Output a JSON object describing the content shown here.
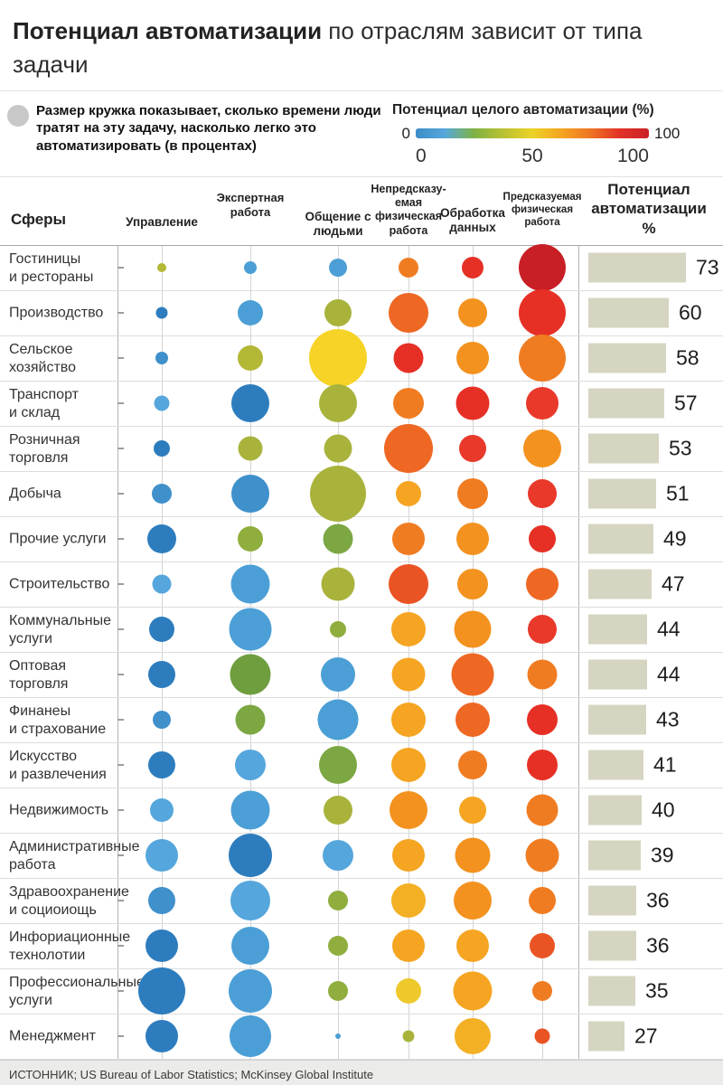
{
  "title": {
    "bold": "Потенциал автоматизации",
    "rest": " по отраслям зависит от типа задачи"
  },
  "size_legend": {
    "icon": "circle-icon",
    "icon_color": "#c8c8c8",
    "text": "Размер кружка показывает, сколько времени люди тратят на эту задачу, насколько легко это автоматизировать (в процентах)"
  },
  "color_legend": {
    "title": "Потенциал целого автоматизации (%)",
    "bar_min_label": "0",
    "bar_max_label": "100",
    "axis_ticks": [
      "0",
      "50",
      "100"
    ],
    "gradient": [
      "#3c8dc8",
      "#55a7db",
      "#7fb243",
      "#b9c133",
      "#ecd326",
      "#f4a421",
      "#ef7423",
      "#e23127",
      "#c92127"
    ]
  },
  "chart_data": {
    "type": "bubble-matrix",
    "row_header": "Сферы",
    "columns": [
      "Управление",
      "Экспертная\nработа",
      "Общение с\nлюдьми",
      "Непредсказу-\nемая\nфизическая\nработа",
      "Обработка\nданных",
      "Предсказуемая\nфизическая\nработа"
    ],
    "value_header": "Потенциал\nавтоматизации %",
    "value_range": [
      0,
      100
    ],
    "bar_color": "#d6d5c2",
    "rows": [
      {
        "label": "Гостиницы\nи рестораны",
        "value": 73,
        "bubbles": [
          {
            "d": 10,
            "c": "#b3b837"
          },
          {
            "d": 14,
            "c": "#4b9fd6"
          },
          {
            "d": 20,
            "c": "#4b9fd6"
          },
          {
            "d": 22,
            "c": "#f07c22"
          },
          {
            "d": 24,
            "c": "#e63026"
          },
          {
            "d": 52,
            "c": "#c81f26"
          }
        ]
      },
      {
        "label": "Производство",
        "value": 60,
        "bubbles": [
          {
            "d": 13,
            "c": "#2d7dbe"
          },
          {
            "d": 28,
            "c": "#4b9fd6"
          },
          {
            "d": 30,
            "c": "#a9b33c"
          },
          {
            "d": 44,
            "c": "#ee6823"
          },
          {
            "d": 32,
            "c": "#f3921f"
          },
          {
            "d": 52,
            "c": "#e63026"
          }
        ]
      },
      {
        "label": "Сельское\nхозяйство",
        "value": 58,
        "bubbles": [
          {
            "d": 14,
            "c": "#3f90cb"
          },
          {
            "d": 28,
            "c": "#b3b837"
          },
          {
            "d": 64,
            "c": "#f6d326"
          },
          {
            "d": 33,
            "c": "#e63026"
          },
          {
            "d": 36,
            "c": "#f3921f"
          },
          {
            "d": 52,
            "c": "#f07c22"
          }
        ]
      },
      {
        "label": "Транспорт\nи склад",
        "value": 57,
        "bubbles": [
          {
            "d": 17,
            "c": "#55a6dc"
          },
          {
            "d": 42,
            "c": "#2d7dbe"
          },
          {
            "d": 42,
            "c": "#a9b33c"
          },
          {
            "d": 34,
            "c": "#f07c22"
          },
          {
            "d": 37,
            "c": "#e63026"
          },
          {
            "d": 36,
            "c": "#e8392b"
          }
        ]
      },
      {
        "label": "Розничная\nторговля",
        "value": 53,
        "bubbles": [
          {
            "d": 18,
            "c": "#2d7dbe"
          },
          {
            "d": 27,
            "c": "#a9b33c"
          },
          {
            "d": 31,
            "c": "#a9b33c"
          },
          {
            "d": 54,
            "c": "#ee6823"
          },
          {
            "d": 30,
            "c": "#e8392b"
          },
          {
            "d": 42,
            "c": "#f3921f"
          }
        ]
      },
      {
        "label": "Добыча",
        "value": 51,
        "bubbles": [
          {
            "d": 22,
            "c": "#3f90cb"
          },
          {
            "d": 42,
            "c": "#3f90cb"
          },
          {
            "d": 62,
            "c": "#a9b33c"
          },
          {
            "d": 28,
            "c": "#f5a522"
          },
          {
            "d": 34,
            "c": "#f07c22"
          },
          {
            "d": 32,
            "c": "#e8392b"
          }
        ]
      },
      {
        "label": "Прочие услуги",
        "value": 49,
        "bubbles": [
          {
            "d": 32,
            "c": "#2d7dbe"
          },
          {
            "d": 28,
            "c": "#8fae3d"
          },
          {
            "d": 33,
            "c": "#7ca743"
          },
          {
            "d": 36,
            "c": "#f07c22"
          },
          {
            "d": 36,
            "c": "#f3921f"
          },
          {
            "d": 30,
            "c": "#e63026"
          }
        ]
      },
      {
        "label": "Строительство",
        "value": 47,
        "bubbles": [
          {
            "d": 21,
            "c": "#55a6dc"
          },
          {
            "d": 43,
            "c": "#4b9fd6"
          },
          {
            "d": 37,
            "c": "#a9b33c"
          },
          {
            "d": 44,
            "c": "#ea5424"
          },
          {
            "d": 34,
            "c": "#f3921f"
          },
          {
            "d": 36,
            "c": "#ee6823"
          }
        ]
      },
      {
        "label": "Коммунальные\nуслуги",
        "value": 44,
        "bubbles": [
          {
            "d": 28,
            "c": "#2d7dbe"
          },
          {
            "d": 47,
            "c": "#4b9fd6"
          },
          {
            "d": 18,
            "c": "#8fae3d"
          },
          {
            "d": 38,
            "c": "#f5a522"
          },
          {
            "d": 41,
            "c": "#f3921f"
          },
          {
            "d": 32,
            "c": "#e8392b"
          }
        ]
      },
      {
        "label": "Оптовая\nторговля",
        "value": 44,
        "bubbles": [
          {
            "d": 30,
            "c": "#2d7dbe"
          },
          {
            "d": 45,
            "c": "#6f9e3f"
          },
          {
            "d": 38,
            "c": "#4b9fd6"
          },
          {
            "d": 37,
            "c": "#f5a522"
          },
          {
            "d": 47,
            "c": "#ee6823"
          },
          {
            "d": 33,
            "c": "#f07c22"
          }
        ]
      },
      {
        "label": "Финанеы\nи страхование",
        "value": 43,
        "bubbles": [
          {
            "d": 20,
            "c": "#3f90cb"
          },
          {
            "d": 33,
            "c": "#7ca743"
          },
          {
            "d": 45,
            "c": "#4b9fd6"
          },
          {
            "d": 38,
            "c": "#f5a522"
          },
          {
            "d": 38,
            "c": "#ee6823"
          },
          {
            "d": 34,
            "c": "#e63026"
          }
        ]
      },
      {
        "label": "Искусство\nи развлечения",
        "value": 41,
        "bubbles": [
          {
            "d": 30,
            "c": "#2d7dbe"
          },
          {
            "d": 34,
            "c": "#55a6dc"
          },
          {
            "d": 42,
            "c": "#7ca743"
          },
          {
            "d": 38,
            "c": "#f5a522"
          },
          {
            "d": 32,
            "c": "#f07c22"
          },
          {
            "d": 34,
            "c": "#e63026"
          }
        ]
      },
      {
        "label": "Недвижимость",
        "value": 40,
        "bubbles": [
          {
            "d": 26,
            "c": "#55a6dc"
          },
          {
            "d": 43,
            "c": "#4b9fd6"
          },
          {
            "d": 32,
            "c": "#a9b33c"
          },
          {
            "d": 42,
            "c": "#f3921f"
          },
          {
            "d": 30,
            "c": "#f5a522"
          },
          {
            "d": 35,
            "c": "#f07c22"
          }
        ]
      },
      {
        "label": "Административные\nработа",
        "value": 39,
        "bubbles": [
          {
            "d": 36,
            "c": "#55a6dc"
          },
          {
            "d": 48,
            "c": "#2d7dbe"
          },
          {
            "d": 34,
            "c": "#55a6dc"
          },
          {
            "d": 36,
            "c": "#f5a522"
          },
          {
            "d": 39,
            "c": "#f3921f"
          },
          {
            "d": 37,
            "c": "#f07c22"
          }
        ]
      },
      {
        "label": "Здравоохранение\nи социоиощь",
        "value": 36,
        "bubbles": [
          {
            "d": 30,
            "c": "#3f90cb"
          },
          {
            "d": 44,
            "c": "#55a6dc"
          },
          {
            "d": 22,
            "c": "#8fae3d"
          },
          {
            "d": 38,
            "c": "#f3b024"
          },
          {
            "d": 42,
            "c": "#f3921f"
          },
          {
            "d": 30,
            "c": "#f07c22"
          }
        ]
      },
      {
        "label": "Инфориационные\nтехнолотии",
        "value": 36,
        "bubbles": [
          {
            "d": 36,
            "c": "#2d7dbe"
          },
          {
            "d": 42,
            "c": "#4b9fd6"
          },
          {
            "d": 22,
            "c": "#8fae3d"
          },
          {
            "d": 36,
            "c": "#f5a522"
          },
          {
            "d": 36,
            "c": "#f5a522"
          },
          {
            "d": 28,
            "c": "#ea5424"
          }
        ]
      },
      {
        "label": "Профессиональные\nуслуги",
        "value": 35,
        "bubbles": [
          {
            "d": 52,
            "c": "#2d7dbe"
          },
          {
            "d": 48,
            "c": "#4b9fd6"
          },
          {
            "d": 22,
            "c": "#8fae3d"
          },
          {
            "d": 28,
            "c": "#edc92c"
          },
          {
            "d": 43,
            "c": "#f5a522"
          },
          {
            "d": 22,
            "c": "#f07c22"
          }
        ]
      },
      {
        "label": "Менеджмент",
        "value": 27,
        "bubbles": [
          {
            "d": 36,
            "c": "#2d7dbe"
          },
          {
            "d": 46,
            "c": "#4b9fd6"
          },
          {
            "d": 6,
            "c": "#4b9fd6"
          },
          {
            "d": 13,
            "c": "#a9b33c"
          },
          {
            "d": 40,
            "c": "#f3b024"
          },
          {
            "d": 17,
            "c": "#ea5424"
          }
        ]
      }
    ]
  },
  "source": "ИСТОННИК; US Bureau of Labor Statistics; McKinsey Global Institute"
}
